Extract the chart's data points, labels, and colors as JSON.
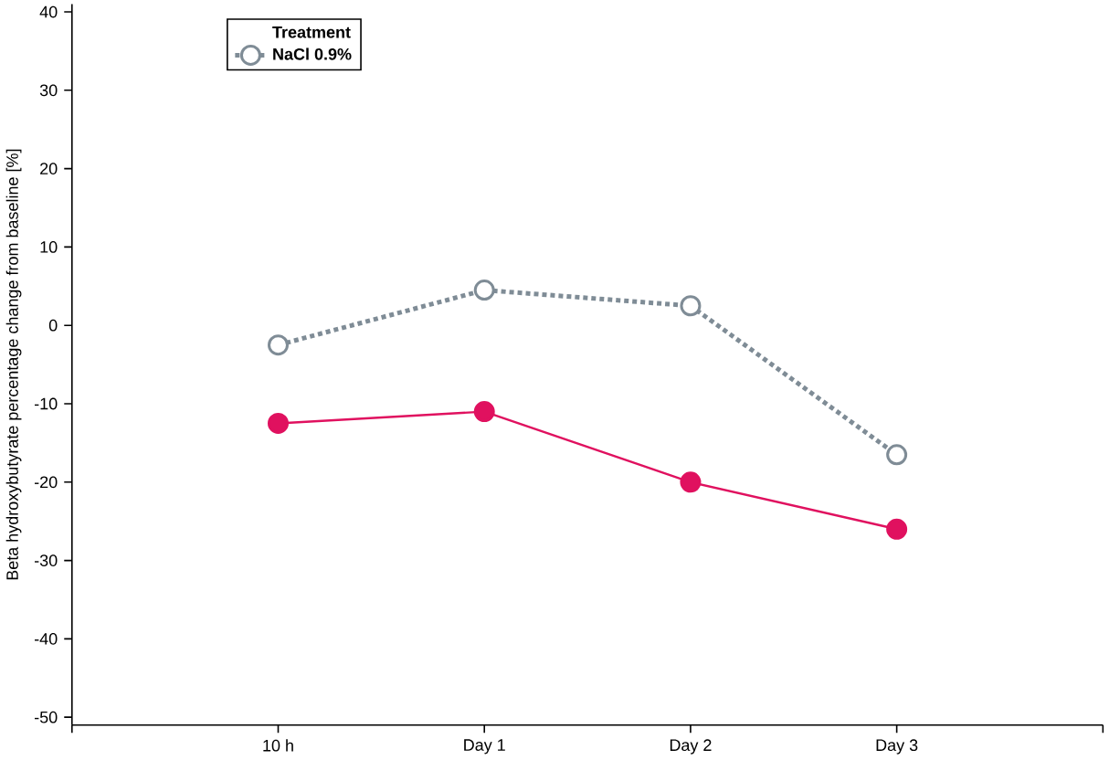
{
  "chart_data": {
    "type": "line",
    "ylabel": "Beta hydroxybutyrate percentage change from baseline [%]",
    "legend_title": "Treatment",
    "categories": [
      "10 h",
      "Day 1",
      "Day 2",
      "Day 3"
    ],
    "series": [
      {
        "color": "#e0115f",
        "values": [
          -12.5,
          -11,
          -20,
          -26
        ],
        "line_style": "solid"
      },
      {
        "name": "NaCl 0.9%",
        "color": "#7f8c96",
        "values": [
          -2.5,
          4.5,
          2.5,
          -16.5
        ],
        "line_style": "dotted"
      }
    ],
    "ylim": [
      -51,
      41
    ],
    "yticks": [
      -50,
      -40,
      -30,
      -20,
      -10,
      0,
      10,
      20,
      30,
      40
    ],
    "marker": "circle",
    "legend": "top left",
    "grid": false
  }
}
